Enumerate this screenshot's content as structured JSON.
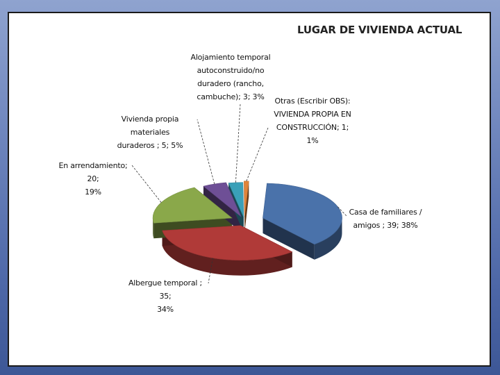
{
  "chart_data": {
    "type": "pie",
    "title": "LUGAR DE VIVIENDA ACTUAL",
    "slices": [
      {
        "name": "Casa de familiares / amigos",
        "value": 39,
        "percent": 38,
        "label_line1": "Casa de familiares /",
        "label_line2": "amigos ; 39; 38%",
        "color": "#4a72aa"
      },
      {
        "name": "Albergue temporal",
        "value": 35,
        "percent": 34,
        "label_line1": "Albergue temporal ; 35;",
        "label_line2": "34%",
        "color": "#b03a38"
      },
      {
        "name": "En arrendamiento",
        "value": 20,
        "percent": 19,
        "label_line1": "En arrendamiento; 20;",
        "label_line2": "19%",
        "color": "#8aa84a"
      },
      {
        "name": "Vivienda propia materiales duraderos",
        "value": 5,
        "percent": 5,
        "label_line1": "Vivienda propia materiales",
        "label_line2": "duraderos ; 5; 5%",
        "color": "#6e4f96"
      },
      {
        "name": "Alojamiento temporal autoconstruido/no duradero (rancho, cambuche)",
        "value": 3,
        "percent": 3,
        "label_line1": "Alojamiento temporal",
        "label_line2": "autoconstruido/no",
        "label_line3": "duradero (rancho,",
        "label_line4": "cambuche); 3; 3%",
        "color": "#3aa0b8"
      },
      {
        "name": "Otras (Escribir OBS): VIVIENDA PROPIA EN CONSTRUCCIÓN",
        "value": 1,
        "percent": 1,
        "label_line1": "Otras (Escribir OBS):",
        "label_line2": "VIVIENDA PROPIA EN",
        "label_line3": "CONSTRUCCIÓN; 1; 1%",
        "color": "#e0843a"
      }
    ],
    "style": "3d-exploded"
  }
}
